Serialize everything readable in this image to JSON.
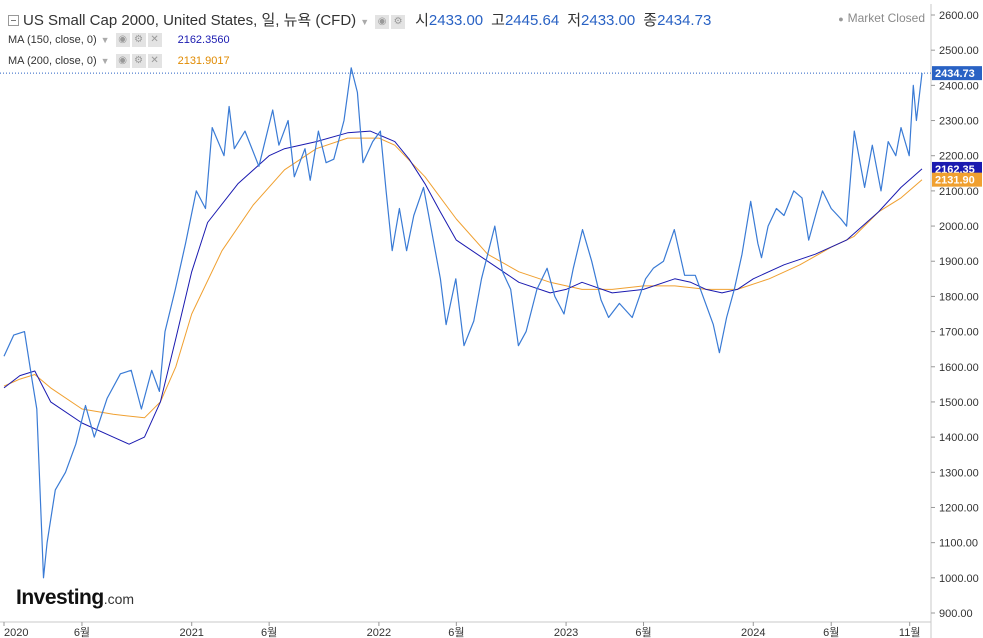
{
  "header": {
    "title": "US Small Cap 2000, United States, 일, 뉴욕 (CFD)",
    "open_label": "시",
    "open": "2433.00",
    "high_label": "고",
    "high": "2445.64",
    "low_label": "저",
    "low": "2433.00",
    "close_label": "종",
    "close": "2434.73",
    "status": "Market Closed"
  },
  "indicators": [
    {
      "label": "MA (150, close, 0)",
      "value": "2162.3560",
      "color": "#1a1ab0"
    },
    {
      "label": "MA (200, close, 0)",
      "value": "2131.9017",
      "color": "#f0a030"
    }
  ],
  "logo": {
    "main": "Investing",
    "suffix": ".com"
  },
  "chart_data": {
    "type": "line",
    "y_axis": {
      "range": [
        900,
        2650
      ],
      "ticks": [
        "2600.00",
        "2500.00",
        "2400.00",
        "2300.00",
        "2200.00",
        "2100.00",
        "2000.00",
        "1900.00",
        "1800.00",
        "1700.00",
        "1600.00",
        "1500.00",
        "1400.00",
        "1300.00",
        "1200.00",
        "1100.00",
        "1000.00",
        "900.00"
      ],
      "position": "right"
    },
    "x_axis": {
      "range": [
        "2020-01-01",
        "2024-11-25"
      ],
      "ticks": [
        {
          "date": "2020-01-01",
          "label": "2020"
        },
        {
          "date": "2020-06-01",
          "label": "6월"
        },
        {
          "date": "2021-01-01",
          "label": "2021"
        },
        {
          "date": "2021-06-01",
          "label": "6월"
        },
        {
          "date": "2022-01-01",
          "label": "2022"
        },
        {
          "date": "2022-06-01",
          "label": "6월"
        },
        {
          "date": "2023-01-01",
          "label": "2023"
        },
        {
          "date": "2023-06-01",
          "label": "6월"
        },
        {
          "date": "2024-01-01",
          "label": "2024"
        },
        {
          "date": "2024-06-01",
          "label": "6월"
        },
        {
          "date": "2024-11-01",
          "label": "11월"
        }
      ]
    },
    "last_price": {
      "value": 2434.73,
      "label": "2434.73",
      "color": "#2962c4"
    },
    "series": [
      {
        "name": "US Small Cap 2000",
        "color": "#3a7bd5",
        "points": [
          [
            "2020-01-01",
            1630
          ],
          [
            "2020-01-20",
            1690
          ],
          [
            "2020-02-10",
            1700
          ],
          [
            "2020-02-25",
            1560
          ],
          [
            "2020-03-05",
            1480
          ],
          [
            "2020-03-18",
            1000
          ],
          [
            "2020-03-25",
            1100
          ],
          [
            "2020-04-10",
            1250
          ],
          [
            "2020-04-30",
            1300
          ],
          [
            "2020-05-20",
            1380
          ],
          [
            "2020-06-08",
            1490
          ],
          [
            "2020-06-25",
            1400
          ],
          [
            "2020-07-20",
            1510
          ],
          [
            "2020-08-15",
            1580
          ],
          [
            "2020-09-05",
            1590
          ],
          [
            "2020-09-25",
            1480
          ],
          [
            "2020-10-15",
            1590
          ],
          [
            "2020-10-30",
            1530
          ],
          [
            "2020-11-10",
            1700
          ],
          [
            "2020-11-30",
            1820
          ],
          [
            "2020-12-20",
            1950
          ],
          [
            "2021-01-10",
            2100
          ],
          [
            "2021-01-28",
            2050
          ],
          [
            "2021-02-10",
            2280
          ],
          [
            "2021-03-05",
            2200
          ],
          [
            "2021-03-15",
            2340
          ],
          [
            "2021-03-25",
            2220
          ],
          [
            "2021-04-15",
            2270
          ],
          [
            "2021-05-12",
            2170
          ],
          [
            "2021-06-08",
            2330
          ],
          [
            "2021-06-20",
            2230
          ],
          [
            "2021-07-08",
            2300
          ],
          [
            "2021-07-20",
            2140
          ],
          [
            "2021-08-10",
            2220
          ],
          [
            "2021-08-20",
            2130
          ],
          [
            "2021-09-05",
            2270
          ],
          [
            "2021-09-20",
            2180
          ],
          [
            "2021-10-05",
            2190
          ],
          [
            "2021-10-25",
            2300
          ],
          [
            "2021-11-08",
            2450
          ],
          [
            "2021-11-20",
            2380
          ],
          [
            "2021-12-01",
            2180
          ],
          [
            "2021-12-20",
            2240
          ],
          [
            "2022-01-04",
            2270
          ],
          [
            "2022-01-15",
            2100
          ],
          [
            "2022-01-27",
            1930
          ],
          [
            "2022-02-10",
            2050
          ],
          [
            "2022-02-24",
            1930
          ],
          [
            "2022-03-10",
            2030
          ],
          [
            "2022-03-29",
            2110
          ],
          [
            "2022-04-12",
            2000
          ],
          [
            "2022-05-01",
            1850
          ],
          [
            "2022-05-12",
            1720
          ],
          [
            "2022-05-31",
            1850
          ],
          [
            "2022-06-16",
            1660
          ],
          [
            "2022-07-05",
            1730
          ],
          [
            "2022-07-20",
            1850
          ],
          [
            "2022-08-15",
            2000
          ],
          [
            "2022-08-30",
            1870
          ],
          [
            "2022-09-15",
            1820
          ],
          [
            "2022-09-30",
            1660
          ],
          [
            "2022-10-15",
            1700
          ],
          [
            "2022-11-05",
            1820
          ],
          [
            "2022-11-25",
            1880
          ],
          [
            "2022-12-10",
            1800
          ],
          [
            "2022-12-28",
            1750
          ],
          [
            "2023-01-15",
            1880
          ],
          [
            "2023-02-02",
            1990
          ],
          [
            "2023-02-20",
            1900
          ],
          [
            "2023-03-10",
            1790
          ],
          [
            "2023-03-25",
            1740
          ],
          [
            "2023-04-15",
            1780
          ],
          [
            "2023-05-10",
            1740
          ],
          [
            "2023-06-05",
            1850
          ],
          [
            "2023-06-20",
            1880
          ],
          [
            "2023-07-10",
            1900
          ],
          [
            "2023-07-31",
            1990
          ],
          [
            "2023-08-20",
            1860
          ],
          [
            "2023-09-10",
            1860
          ],
          [
            "2023-09-30",
            1780
          ],
          [
            "2023-10-15",
            1720
          ],
          [
            "2023-10-27",
            1640
          ],
          [
            "2023-11-10",
            1740
          ],
          [
            "2023-11-25",
            1820
          ],
          [
            "2023-12-10",
            1920
          ],
          [
            "2023-12-27",
            2070
          ],
          [
            "2024-01-10",
            1950
          ],
          [
            "2024-01-17",
            1910
          ],
          [
            "2024-01-30",
            2000
          ],
          [
            "2024-02-15",
            2050
          ],
          [
            "2024-03-01",
            2030
          ],
          [
            "2024-03-20",
            2100
          ],
          [
            "2024-04-05",
            2080
          ],
          [
            "2024-04-18",
            1960
          ],
          [
            "2024-05-05",
            2050
          ],
          [
            "2024-05-15",
            2100
          ],
          [
            "2024-06-01",
            2050
          ],
          [
            "2024-06-20",
            2020
          ],
          [
            "2024-07-01",
            2000
          ],
          [
            "2024-07-16",
            2270
          ],
          [
            "2024-08-05",
            2110
          ],
          [
            "2024-08-20",
            2230
          ],
          [
            "2024-09-06",
            2100
          ],
          [
            "2024-09-20",
            2240
          ],
          [
            "2024-10-05",
            2200
          ],
          [
            "2024-10-15",
            2280
          ],
          [
            "2024-10-31",
            2200
          ],
          [
            "2024-11-08",
            2400
          ],
          [
            "2024-11-14",
            2300
          ],
          [
            "2024-11-25",
            2434.73
          ]
        ]
      },
      {
        "name": "MA (150, close, 0)",
        "color": "#1a1ab0",
        "points": [
          [
            "2020-01-01",
            1540
          ],
          [
            "2020-02-01",
            1575
          ],
          [
            "2020-03-01",
            1588
          ],
          [
            "2020-04-01",
            1500
          ],
          [
            "2020-06-01",
            1440
          ],
          [
            "2020-08-01",
            1400
          ],
          [
            "2020-09-01",
            1380
          ],
          [
            "2020-10-01",
            1400
          ],
          [
            "2020-11-01",
            1500
          ],
          [
            "2020-12-01",
            1680
          ],
          [
            "2021-01-01",
            1870
          ],
          [
            "2021-02-01",
            2010
          ],
          [
            "2021-04-01",
            2120
          ],
          [
            "2021-06-01",
            2200
          ],
          [
            "2021-07-01",
            2220
          ],
          [
            "2021-09-01",
            2240
          ],
          [
            "2021-11-01",
            2265
          ],
          [
            "2021-12-15",
            2270
          ],
          [
            "2022-02-01",
            2240
          ],
          [
            "2022-03-01",
            2190
          ],
          [
            "2022-04-01",
            2120
          ],
          [
            "2022-05-01",
            2040
          ],
          [
            "2022-06-01",
            1960
          ],
          [
            "2022-08-01",
            1900
          ],
          [
            "2022-10-01",
            1840
          ],
          [
            "2022-12-01",
            1810
          ],
          [
            "2023-01-01",
            1820
          ],
          [
            "2023-02-01",
            1840
          ],
          [
            "2023-04-01",
            1810
          ],
          [
            "2023-06-01",
            1820
          ],
          [
            "2023-08-01",
            1850
          ],
          [
            "2023-09-01",
            1840
          ],
          [
            "2023-10-01",
            1820
          ],
          [
            "2023-11-01",
            1810
          ],
          [
            "2023-12-01",
            1820
          ],
          [
            "2024-01-01",
            1850
          ],
          [
            "2024-03-01",
            1890
          ],
          [
            "2024-05-01",
            1920
          ],
          [
            "2024-07-01",
            1960
          ],
          [
            "2024-09-01",
            2040
          ],
          [
            "2024-10-15",
            2110
          ],
          [
            "2024-11-25",
            2162.36
          ]
        ]
      },
      {
        "name": "MA (200, close, 0)",
        "color": "#f0a030",
        "points": [
          [
            "2020-01-01",
            1545
          ],
          [
            "2020-02-01",
            1565
          ],
          [
            "2020-03-01",
            1578
          ],
          [
            "2020-04-01",
            1540
          ],
          [
            "2020-06-01",
            1480
          ],
          [
            "2020-08-01",
            1465
          ],
          [
            "2020-10-01",
            1455
          ],
          [
            "2020-11-01",
            1500
          ],
          [
            "2020-12-01",
            1600
          ],
          [
            "2021-01-01",
            1750
          ],
          [
            "2021-03-01",
            1930
          ],
          [
            "2021-05-01",
            2060
          ],
          [
            "2021-07-01",
            2160
          ],
          [
            "2021-09-01",
            2220
          ],
          [
            "2021-11-01",
            2250
          ],
          [
            "2022-01-01",
            2250
          ],
          [
            "2022-02-01",
            2230
          ],
          [
            "2022-04-01",
            2140
          ],
          [
            "2022-06-01",
            2020
          ],
          [
            "2022-08-01",
            1920
          ],
          [
            "2022-10-01",
            1870
          ],
          [
            "2022-12-01",
            1840
          ],
          [
            "2023-02-01",
            1820
          ],
          [
            "2023-04-01",
            1820
          ],
          [
            "2023-06-01",
            1830
          ],
          [
            "2023-08-01",
            1830
          ],
          [
            "2023-10-01",
            1820
          ],
          [
            "2023-12-01",
            1820
          ],
          [
            "2024-02-01",
            1850
          ],
          [
            "2024-04-01",
            1890
          ],
          [
            "2024-06-01",
            1940
          ],
          [
            "2024-07-15",
            1970
          ],
          [
            "2024-09-01",
            2040
          ],
          [
            "2024-10-15",
            2080
          ],
          [
            "2024-11-25",
            2131.9
          ]
        ]
      }
    ]
  }
}
